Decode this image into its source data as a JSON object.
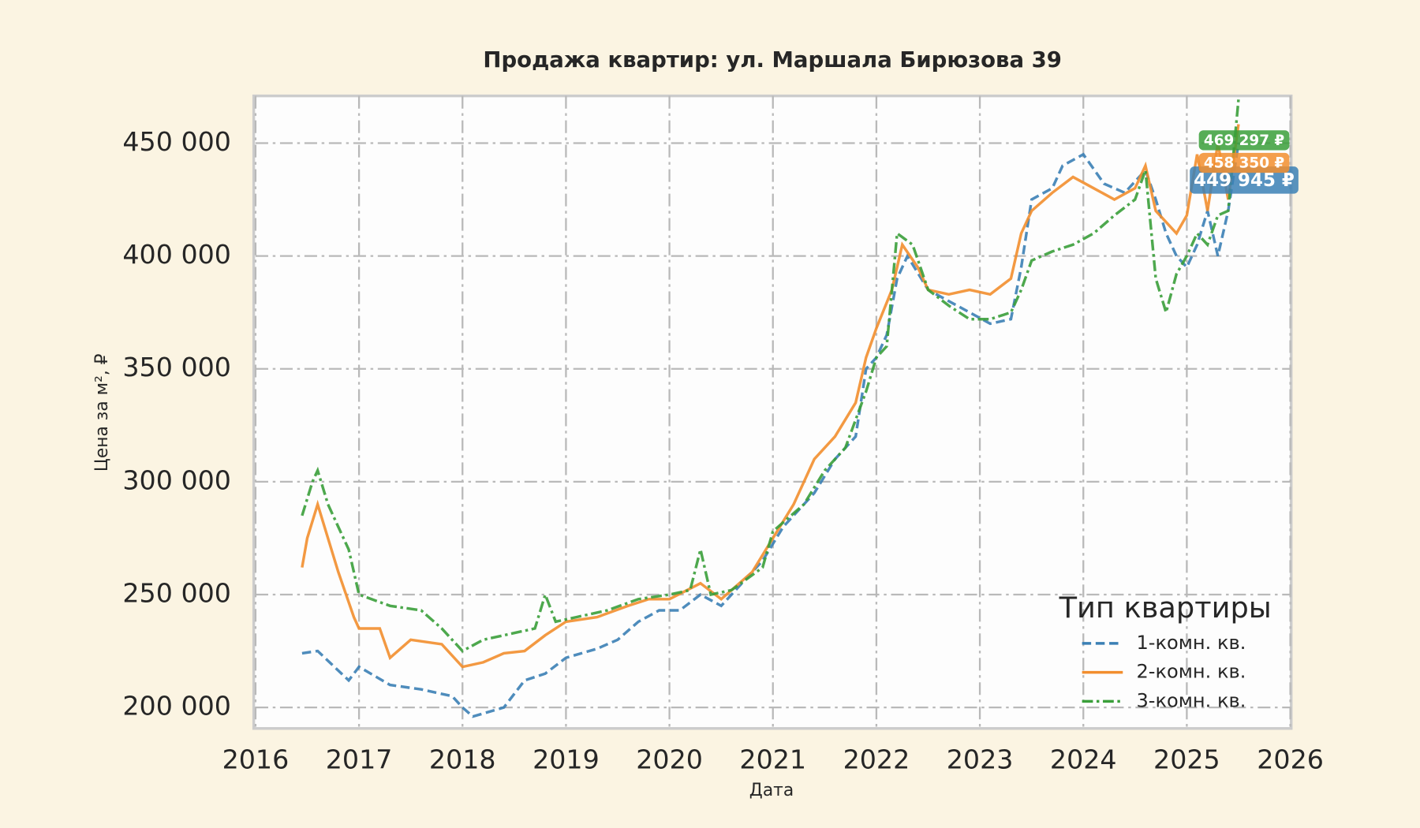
{
  "chart_data": {
    "type": "line",
    "title": "Продажа квартир: ул. Маршала Бирюзова 39",
    "x_label": "Дата",
    "y_label": "Цена за м², ₽",
    "legend_title": "Тип квартиры",
    "legend_loc": "lower right",
    "grid": true,
    "xlim": [
      2016,
      2026
    ],
    "xticks": [
      2016,
      2017,
      2018,
      2019,
      2020,
      2021,
      2022,
      2023,
      2024,
      2025,
      2026
    ],
    "ylim": [
      190700,
      470900
    ],
    "yticks": [
      {
        "value": 200000,
        "label": "200 000"
      },
      {
        "value": 250000,
        "label": "250 000"
      },
      {
        "value": 300000,
        "label": "300 000"
      },
      {
        "value": 350000,
        "label": "350 000"
      },
      {
        "value": 400000,
        "label": "400 000"
      },
      {
        "value": 450000,
        "label": "450 000"
      }
    ],
    "series": [
      {
        "name": "1-комн. кв.",
        "color": "#3b80b5",
        "linestyle": "dashed",
        "x": [
          2016.45,
          2016.6,
          2016.9,
          2017.0,
          2017.3,
          2017.6,
          2017.9,
          2018.0,
          2018.1,
          2018.4,
          2018.6,
          2018.8,
          2019.0,
          2019.3,
          2019.5,
          2019.7,
          2019.9,
          2020.1,
          2020.3,
          2020.5,
          2020.7,
          2020.9,
          2021.1,
          2021.4,
          2021.6,
          2021.8,
          2021.9,
          2022.0,
          2022.1,
          2022.2,
          2022.3,
          2022.5,
          2022.7,
          2022.9,
          2023.1,
          2023.3,
          2023.4,
          2023.5,
          2023.7,
          2023.8,
          2024.0,
          2024.2,
          2024.4,
          2024.6,
          2024.7,
          2024.8,
          2024.9,
          2025.0,
          2025.1,
          2025.2,
          2025.3,
          2025.4,
          2025.5
        ],
        "values": [
          224000,
          225000,
          212000,
          218000,
          210000,
          208000,
          205000,
          200000,
          196000,
          200000,
          212000,
          215000,
          222000,
          226000,
          230000,
          238000,
          243000,
          243000,
          250000,
          245000,
          255000,
          265000,
          280000,
          295000,
          310000,
          320000,
          350000,
          355000,
          365000,
          390000,
          400000,
          385000,
          380000,
          375000,
          370000,
          372000,
          395000,
          425000,
          430000,
          440000,
          445000,
          432000,
          428000,
          438000,
          425000,
          410000,
          400000,
          395000,
          405000,
          420000,
          400000,
          420000,
          449945
        ],
        "value_labels": [
          null,
          null,
          null,
          null,
          null,
          null,
          null,
          null,
          null,
          null,
          null,
          null,
          null,
          null,
          null,
          null,
          null,
          null,
          null,
          null,
          null,
          null,
          null,
          null,
          null,
          null,
          null,
          null,
          null,
          null,
          null,
          null,
          null,
          null,
          null,
          null,
          null,
          null,
          null,
          null,
          null,
          null,
          null,
          null,
          null,
          null,
          null,
          null,
          null,
          null,
          null,
          null,
          "449 945 ₽"
        ]
      },
      {
        "name": "2-комн. кв.",
        "color": "#f28e2e",
        "linestyle": "solid",
        "x": [
          2016.45,
          2016.5,
          2016.6,
          2016.7,
          2016.8,
          2016.95,
          2017.0,
          2017.2,
          2017.3,
          2017.5,
          2017.8,
          2018.0,
          2018.2,
          2018.4,
          2018.6,
          2018.8,
          2019.0,
          2019.3,
          2019.6,
          2019.8,
          2020.0,
          2020.3,
          2020.5,
          2020.8,
          2021.0,
          2021.2,
          2021.4,
          2021.6,
          2021.8,
          2021.9,
          2022.0,
          2022.15,
          2022.25,
          2022.4,
          2022.5,
          2022.7,
          2022.9,
          2023.1,
          2023.3,
          2023.4,
          2023.5,
          2023.7,
          2023.9,
          2024.1,
          2024.3,
          2024.5,
          2024.6,
          2024.7,
          2024.9,
          2025.0,
          2025.1,
          2025.2,
          2025.3,
          2025.4,
          2025.5
        ],
        "values": [
          262000,
          275000,
          290000,
          275000,
          260000,
          240000,
          235000,
          235000,
          222000,
          230000,
          228000,
          218000,
          220000,
          224000,
          225000,
          232000,
          238000,
          240000,
          245000,
          248000,
          248000,
          255000,
          248000,
          260000,
          275000,
          290000,
          310000,
          320000,
          335000,
          355000,
          368000,
          385000,
          405000,
          395000,
          385000,
          383000,
          385000,
          383000,
          390000,
          410000,
          420000,
          428000,
          435000,
          430000,
          425000,
          430000,
          440000,
          420000,
          410000,
          418000,
          445000,
          420000,
          450000,
          425000,
          458350
        ],
        "value_labels": [
          null,
          null,
          null,
          null,
          null,
          null,
          null,
          null,
          null,
          null,
          null,
          null,
          null,
          null,
          null,
          null,
          null,
          null,
          null,
          null,
          null,
          null,
          null,
          null,
          null,
          null,
          null,
          null,
          null,
          null,
          null,
          null,
          null,
          null,
          null,
          null,
          null,
          null,
          null,
          null,
          null,
          null,
          null,
          null,
          null,
          null,
          null,
          null,
          null,
          null,
          null,
          null,
          null,
          null,
          "458 350 ₽"
        ]
      },
      {
        "name": "3-комн. кв.",
        "color": "#3a9f3a",
        "linestyle": "dashdot",
        "x": [
          2016.45,
          2016.55,
          2016.6,
          2016.7,
          2016.8,
          2016.9,
          2017.0,
          2017.3,
          2017.6,
          2017.8,
          2018.0,
          2018.2,
          2018.5,
          2018.7,
          2018.8,
          2018.9,
          2019.1,
          2019.4,
          2019.7,
          2020.0,
          2020.2,
          2020.3,
          2020.4,
          2020.6,
          2020.9,
          2021.0,
          2021.3,
          2021.5,
          2021.7,
          2021.9,
          2022.0,
          2022.1,
          2022.2,
          2022.35,
          2022.5,
          2022.7,
          2022.9,
          2023.1,
          2023.3,
          2023.4,
          2023.5,
          2023.7,
          2023.9,
          2024.1,
          2024.3,
          2024.5,
          2024.6,
          2024.7,
          2024.8,
          2024.9,
          2025.0,
          2025.1,
          2025.2,
          2025.3,
          2025.4,
          2025.5
        ],
        "values": [
          285000,
          300000,
          305000,
          290000,
          280000,
          270000,
          250000,
          245000,
          243000,
          235000,
          225000,
          230000,
          233000,
          235000,
          250000,
          238000,
          240000,
          243000,
          248000,
          250000,
          252000,
          270000,
          250000,
          252000,
          262000,
          278000,
          290000,
          305000,
          315000,
          340000,
          355000,
          360000,
          410000,
          405000,
          385000,
          378000,
          372000,
          372000,
          375000,
          385000,
          398000,
          402000,
          405000,
          410000,
          418000,
          425000,
          438000,
          390000,
          375000,
          392000,
          400000,
          410000,
          405000,
          418000,
          420000,
          469297
        ],
        "value_labels": [
          null,
          null,
          null,
          null,
          null,
          null,
          null,
          null,
          null,
          null,
          null,
          null,
          null,
          null,
          null,
          null,
          null,
          null,
          null,
          null,
          null,
          null,
          null,
          null,
          null,
          null,
          null,
          null,
          null,
          null,
          null,
          null,
          null,
          null,
          null,
          null,
          null,
          null,
          null,
          null,
          null,
          null,
          null,
          null,
          null,
          null,
          null,
          null,
          null,
          null,
          null,
          null,
          null,
          null,
          null,
          "469 297 ₽"
        ]
      }
    ]
  }
}
